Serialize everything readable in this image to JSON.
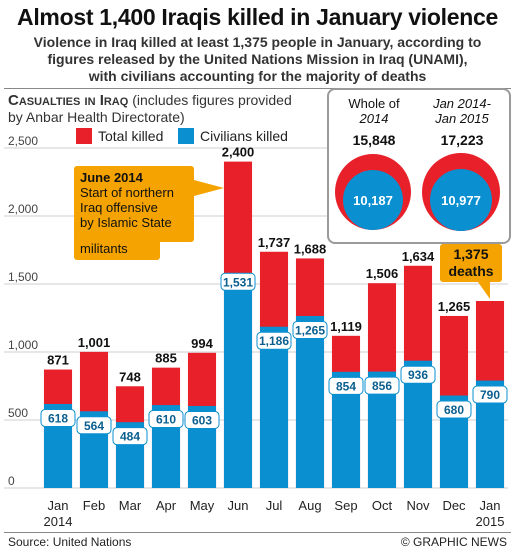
{
  "header": {
    "title": "Almost 1,400 Iraqis killed in January violence",
    "subtitle_line1": "Violence in Iraq killed at least 1,375 people in January, according to",
    "subtitle_line2": "figures released by the United Nations Mission in Iraq (UNAMI),",
    "subtitle_line3": "with civilians accounting for the majority of deaths"
  },
  "chart_header": {
    "title_caps": "Casualties in Iraq",
    "title_rest": " (includes figures provided",
    "title_line2": "by Anbar Health Directorate)"
  },
  "legend": {
    "total_label": "Total killed",
    "civilians_label": "Civilians killed"
  },
  "colors": {
    "total": "#e8202a",
    "civilians": "#0a8fd0",
    "callout": "#f5a300",
    "grid": "#cfcfcf"
  },
  "inset": {
    "col1_line1": "Whole of",
    "col1_line2": "2014",
    "col1_total": "15,848",
    "col1_civilians": "10,187",
    "col2_line1": "Jan 2014-",
    "col2_line2": "Jan 2015",
    "col2_total": "17,223",
    "col2_civilians": "10,977"
  },
  "callouts": {
    "june_title": "June 2014",
    "june_line1": "Start of northern",
    "june_line2": "Iraq offensive",
    "june_line3": "by Islamic State",
    "june_line4": "militants",
    "jan_line1": "1,375",
    "jan_line2": "deaths"
  },
  "footer": {
    "source": "Source: United Nations",
    "copyright": "© GRAPHIC NEWS"
  },
  "chart_data": {
    "type": "bar",
    "categories": [
      "Jan",
      "Feb",
      "Mar",
      "Apr",
      "May",
      "Jun",
      "Jul",
      "Aug",
      "Sep",
      "Oct",
      "Nov",
      "Dec",
      "Jan"
    ],
    "category_years": [
      "2014",
      "",
      "",
      "",
      "",
      "",
      "",
      "",
      "",
      "",
      "",
      "",
      "2015"
    ],
    "series": [
      {
        "name": "Total killed",
        "values": [
          871,
          1001,
          748,
          885,
          994,
          2400,
          1737,
          1688,
          1119,
          1506,
          1634,
          1265,
          1375
        ],
        "labels": [
          "871",
          "1,001",
          "748",
          "885",
          "994",
          "2,400",
          "1,737",
          "1,688",
          "1,119",
          "1,506",
          "1,634",
          "1,265",
          ""
        ]
      },
      {
        "name": "Civilians killed",
        "values": [
          618,
          564,
          484,
          610,
          603,
          1531,
          1186,
          1265,
          854,
          856,
          936,
          680,
          790
        ],
        "labels": [
          "618",
          "564",
          "484",
          "610",
          "603",
          "1,531",
          "1,186",
          "1,265",
          "854",
          "856",
          "936",
          "680",
          "790"
        ]
      }
    ],
    "yticks": [
      0,
      500,
      1000,
      1500,
      2000,
      2500
    ],
    "ytick_labels": [
      "0",
      "500",
      "1,000",
      "1,500",
      "2,000",
      "2,500"
    ],
    "ylim": [
      0,
      2500
    ],
    "grid": true
  }
}
